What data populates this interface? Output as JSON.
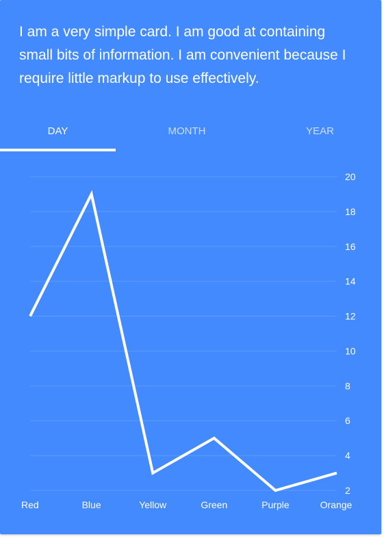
{
  "card": {
    "text": "I am a very simple card. I am good at containing small bits of information. I am convenient because I require little markup to use effectively."
  },
  "tabs": [
    {
      "label": "Day",
      "active": true
    },
    {
      "label": "Month",
      "active": false
    },
    {
      "label": "Year",
      "active": false
    }
  ],
  "colors": {
    "card_background": "#448aff",
    "text": "#ffffff",
    "grid_line": "#5c9bff"
  },
  "chart_data": {
    "type": "line",
    "categories": [
      "Red",
      "Blue",
      "Yellow",
      "Green",
      "Purple",
      "Orange"
    ],
    "series": [
      {
        "values": [
          12,
          19,
          3,
          5,
          2,
          3
        ]
      }
    ],
    "ylim": [
      2,
      20
    ],
    "yticks": [
      2,
      4,
      6,
      8,
      10,
      12,
      14,
      16,
      18,
      20
    ],
    "y_axis_position": "right",
    "grid": true,
    "legend": "none"
  }
}
